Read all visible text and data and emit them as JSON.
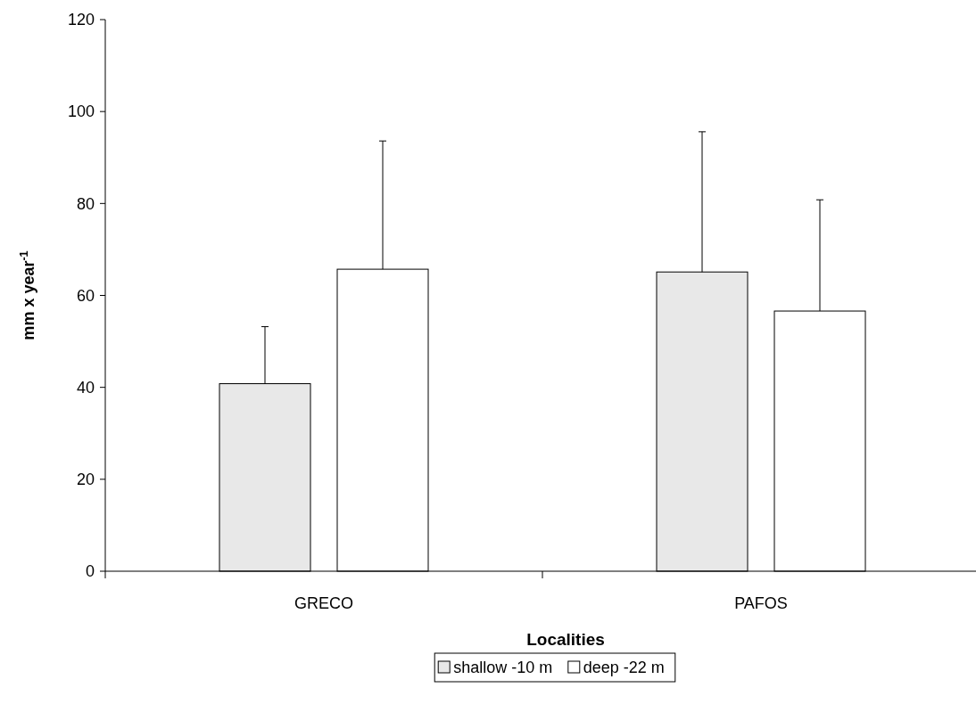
{
  "chart_data": {
    "type": "bar",
    "xlabel": "Localities",
    "ylabel": "mm x year$^{-1}$",
    "categories": [
      "GRECO",
      "PAFOS"
    ],
    "series": [
      {
        "name": "shallow -10 m",
        "color": "#e8e8e8",
        "values": [
          40.8,
          65.1
        ],
        "errors": [
          [
            40.8,
            53.2
          ],
          [
            65.1,
            95.6
          ]
        ]
      },
      {
        "name": "deep -22 m",
        "color": "#ffffff",
        "values": [
          65.7,
          56.6
        ],
        "errors": [
          [
            65.7,
            93.6
          ],
          [
            56.6,
            80.8
          ]
        ]
      }
    ],
    "ylim": [
      0,
      120
    ],
    "yticks": [
      0,
      20,
      40,
      60,
      80,
      100,
      120
    ],
    "grid": false,
    "legend": "bottom"
  }
}
